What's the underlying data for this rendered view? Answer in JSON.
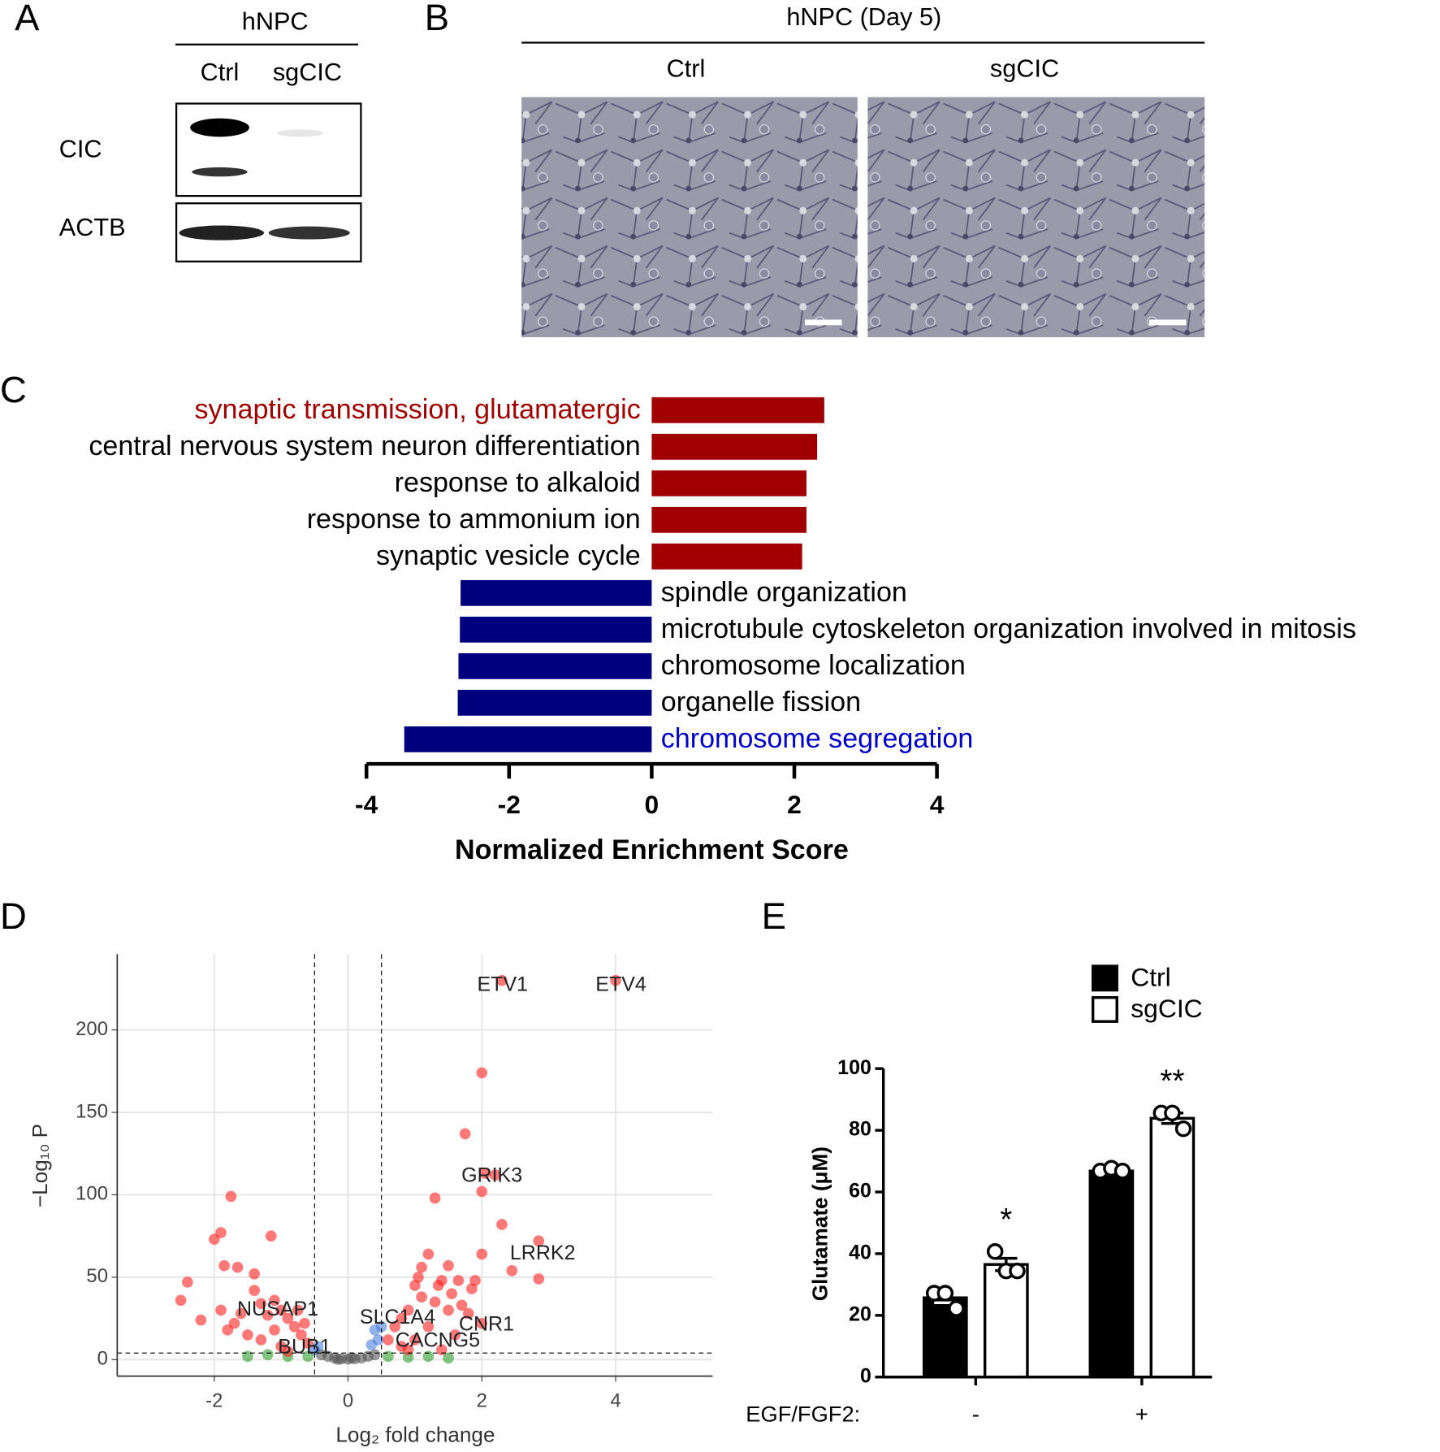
{
  "panels": {
    "A": {
      "label": "A",
      "header": "hNPC",
      "lanes": [
        "Ctrl",
        "sgCIC"
      ],
      "rows": [
        "CIC",
        "ACTB"
      ]
    },
    "B": {
      "label": "B",
      "header": "hNPC (Day 5)",
      "columns": [
        "Ctrl",
        "sgCIC"
      ]
    },
    "C": {
      "label": "C"
    },
    "D": {
      "label": "D"
    },
    "E": {
      "label": "E"
    }
  },
  "chart_data": [
    {
      "type": "bar",
      "orientation": "horizontal",
      "categories": [
        "synaptic transmission, glutamatergic",
        "central nervous system neuron differentiation",
        "response to alkaloid",
        "response to ammonium ion",
        "synaptic vesicle cycle",
        "spindle organization",
        "microtubule cytoskeleton organization involved in mitosis",
        "chromosome localization",
        "organelle fission",
        "chromosome segregation"
      ],
      "values": [
        2.42,
        2.32,
        2.17,
        2.17,
        2.11,
        -2.68,
        -2.69,
        -2.71,
        -2.72,
        -3.47
      ],
      "colors": [
        "#a00000",
        "#a00000",
        "#a00000",
        "#a00000",
        "#a00000",
        "#00007f",
        "#00007f",
        "#00007f",
        "#00007f",
        "#00007f"
      ],
      "label_colors": [
        "#a00000",
        "#000000",
        "#000000",
        "#000000",
        "#000000",
        "#000000",
        "#000000",
        "#000000",
        "#000000",
        "#0000c8"
      ],
      "xlabel": "Normalized Enrichment Score",
      "xlim": [
        -4,
        4
      ],
      "xticks": [
        -4,
        -2,
        0,
        2,
        4
      ]
    },
    {
      "type": "scatter",
      "xlabel": "Log₂ fold change",
      "ylabel": "−Log₁₀ P",
      "xlim": [
        -3.45,
        5.45
      ],
      "ylim": [
        -10,
        246
      ],
      "xticks": [
        -2,
        0,
        2,
        4
      ],
      "yticks": [
        0,
        50,
        100,
        150,
        200
      ],
      "grid": true,
      "threshold_x": [
        -0.5,
        0.5
      ],
      "threshold_y": 4,
      "series": [
        {
          "color": "#555555",
          "x": [
            -0.4,
            -0.3,
            -0.2,
            -0.1,
            0,
            0.1,
            0.2,
            0.3,
            0.4,
            -0.15,
            0.05
          ],
          "y": [
            3,
            2,
            1,
            0.5,
            0.3,
            0.6,
            1,
            2,
            3,
            0.2,
            1.2
          ]
        },
        {
          "color": "#2e9b2e",
          "x": [
            -1.2,
            -0.9,
            -0.6,
            0.6,
            0.9,
            1.2,
            -1.5,
            1.5
          ],
          "y": [
            3,
            2,
            2,
            2,
            1.5,
            2,
            2,
            1
          ]
        },
        {
          "color": "#4a7fe0",
          "x": [
            0.45,
            0.4,
            0.35,
            0.5,
            -0.45,
            -0.5
          ],
          "y": [
            12,
            18,
            9,
            20,
            8,
            6
          ]
        },
        {
          "color": "#ff2020",
          "x": [
            -2.5,
            -2.4,
            -2.2,
            -2.0,
            -1.9,
            -1.75,
            -1.85,
            -1.65,
            -1.4,
            -1.15,
            -1.4,
            -1.3,
            -1.6,
            -1.9,
            -1.7,
            -1.2,
            -1.1,
            -1.0,
            -0.9,
            -0.8,
            -0.7,
            -0.6,
            -1.5,
            -1.3,
            -1.0,
            -0.9,
            -0.75,
            -0.65,
            -1.8,
            -1.1,
            2.3,
            4.0,
            2.0,
            1.75,
            2.2,
            2.05,
            2.0,
            1.3,
            2.3,
            2.85,
            2.85,
            2.0,
            2.45,
            1.2,
            1.1,
            1.5,
            1.4,
            1.65,
            1.0,
            1.1,
            1.3,
            1.85,
            1.9,
            1.5,
            1.8,
            0.9,
            0.8,
            0.7,
            0.6,
            0.8,
            1.0,
            1.2,
            1.6,
            2.0,
            1.4,
            0.9,
            1.7,
            1.35,
            1.05,
            1.55
          ],
          "y": [
            36,
            47,
            24,
            73,
            77,
            99,
            57,
            56,
            52,
            75,
            42,
            34,
            28,
            30,
            22,
            27,
            36,
            30,
            25,
            20,
            15,
            10,
            15,
            12,
            8,
            5,
            30,
            22,
            18,
            18,
            230,
            230,
            174,
            137,
            112,
            113,
            102,
            98,
            82,
            72,
            49,
            64,
            54,
            64,
            56,
            57,
            48,
            48,
            45,
            38,
            35,
            43,
            48,
            30,
            28,
            30,
            25,
            20,
            12,
            8,
            12,
            20,
            15,
            22,
            6,
            6,
            33,
            45,
            50,
            40
          ]
        }
      ],
      "annotations": [
        {
          "text": "ETV1",
          "x": 2.31,
          "y": 227
        },
        {
          "text": "ETV4",
          "x": 4.08,
          "y": 227
        },
        {
          "text": "GRIK3",
          "x": 2.15,
          "y": 111
        },
        {
          "text": "LRRK2",
          "x": 2.91,
          "y": 64
        },
        {
          "text": "NUSAP1",
          "x": -1.05,
          "y": 30
        },
        {
          "text": "SLC1A4",
          "x": 0.74,
          "y": 25
        },
        {
          "text": "CNR1",
          "x": 2.07,
          "y": 21
        },
        {
          "text": "BUB1",
          "x": -0.65,
          "y": 7
        },
        {
          "text": "CACNG5",
          "x": 1.34,
          "y": 11
        }
      ]
    },
    {
      "type": "grouped_bar",
      "categories": [
        "-",
        "+"
      ],
      "xlabel": "EGF/FGF2:",
      "ylabel": "Glutamate (μM)",
      "ylim": [
        0,
        100
      ],
      "yticks": [
        0,
        20,
        40,
        60,
        80,
        100
      ],
      "legend": "top",
      "series": [
        {
          "name": "Ctrl",
          "color": "#000000",
          "values": [
            25.7,
            66.8
          ],
          "errors": [
            1.6,
            0.3
          ],
          "points": [
            [
              27.2,
              27.2,
              22.2
            ],
            [
              66.8,
              67.7,
              66.8
            ]
          ]
        },
        {
          "name": "sgCIC",
          "color": "#ffffff",
          "values": [
            36.5,
            83.9
          ],
          "errors": [
            2.0,
            1.7
          ],
          "points": [
            [
              40.7,
              34.4,
              34.4
            ],
            [
              85.6,
              85.6,
              80.5
            ]
          ],
          "significance": [
            "*",
            "**"
          ]
        }
      ]
    }
  ]
}
